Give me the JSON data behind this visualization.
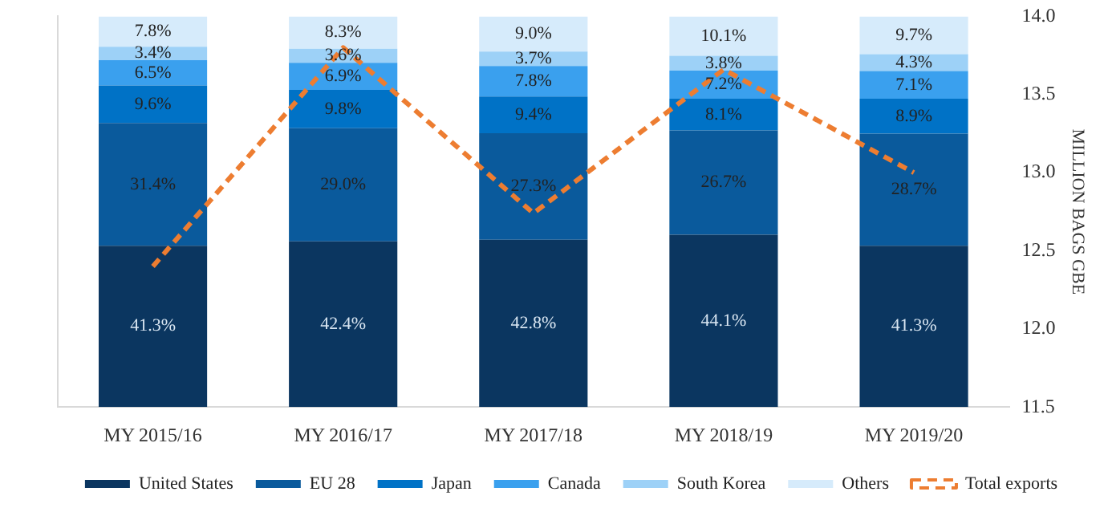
{
  "chart_data": {
    "type": "bar",
    "stacked": true,
    "categories": [
      "MY 2015/16",
      "MY 2016/17",
      "MY 2017/18",
      "MY 2018/19",
      "MY 2019/20"
    ],
    "y2lim": [
      11.5,
      14.0
    ],
    "y2ticks": [
      {
        "value": 11.5,
        "label": "11.5"
      },
      {
        "value": 12.0,
        "label": "12.0"
      },
      {
        "value": 12.5,
        "label": "12.5"
      },
      {
        "value": 13.0,
        "label": "13.0"
      },
      {
        "value": 13.5,
        "label": "13.5"
      },
      {
        "value": 14.0,
        "label": "14.0"
      }
    ],
    "y2label": "MILLION BAGS GBE",
    "legend": "bottom",
    "grid": false,
    "series": [
      {
        "name": "United States",
        "color": "#0b3660",
        "values": [
          41.3,
          42.4,
          42.8,
          44.1,
          41.3
        ],
        "value_labels": [
          "41.3%",
          "42.4%",
          "42.8%",
          "44.1%",
          "41.3%"
        ]
      },
      {
        "name": "EU 28",
        "color": "#0a5a9c",
        "values": [
          31.4,
          29.0,
          27.3,
          26.7,
          28.7
        ],
        "value_labels": [
          "31.4%",
          "29.0%",
          "27.3%",
          "26.7%",
          "28.7%"
        ]
      },
      {
        "name": "Japan",
        "color": "#0072c6",
        "values": [
          9.6,
          9.8,
          9.4,
          8.1,
          8.9
        ],
        "value_labels": [
          "9.6%",
          "9.8%",
          "9.4%",
          "8.1%",
          "8.9%"
        ]
      },
      {
        "name": "Canada",
        "color": "#3aa0ee",
        "values": [
          6.5,
          6.9,
          7.8,
          7.2,
          7.1
        ],
        "value_labels": [
          "6.5%",
          "6.9%",
          "7.8%",
          "7.2%",
          "7.1%"
        ]
      },
      {
        "name": "South Korea",
        "color": "#9dd1f7",
        "values": [
          3.4,
          3.6,
          3.7,
          3.8,
          4.3
        ],
        "value_labels": [
          "3.4%",
          "3.6%",
          "3.7%",
          "3.8%",
          "4.3%"
        ]
      },
      {
        "name": "Others",
        "color": "#d6ebfb",
        "values": [
          7.8,
          8.3,
          9.0,
          10.1,
          9.7
        ],
        "value_labels": [
          "7.8%",
          "8.3%",
          "9.0%",
          "10.1%",
          "9.7%"
        ]
      },
      {
        "name": "Total exports",
        "type": "line",
        "axis": "y2",
        "color": "#ed7d31",
        "line_style": "dashed",
        "marker": "none",
        "values": [
          12.4,
          13.8,
          12.74,
          13.66,
          13.0
        ]
      }
    ]
  }
}
